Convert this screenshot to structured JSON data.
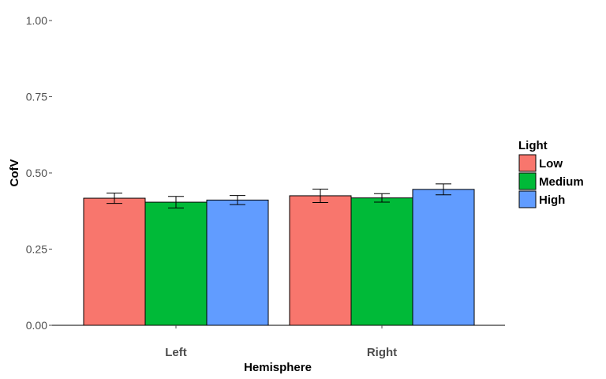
{
  "chart_data": {
    "type": "bar",
    "title": "",
    "xlabel": "Hemisphere",
    "ylabel": "CofV",
    "categories": [
      "Left",
      "Right"
    ],
    "ylim": [
      0,
      1
    ],
    "yticks": [
      "0.00",
      "0.25",
      "0.50",
      "0.75",
      "1.00"
    ],
    "ytick_values": [
      0,
      0.25,
      0.5,
      0.75,
      1.0
    ],
    "grid": false,
    "legend": {
      "title": "Light",
      "placement": "right"
    },
    "series": [
      {
        "name": "Low",
        "color": "#F8766D",
        "values": [
          0.417,
          0.425
        ],
        "errors": [
          0.017,
          0.022
        ]
      },
      {
        "name": "Medium",
        "color": "#00BA38",
        "values": [
          0.404,
          0.418
        ],
        "errors": [
          0.019,
          0.014
        ]
      },
      {
        "name": "High",
        "color": "#619CFF",
        "values": [
          0.411,
          0.446
        ],
        "errors": [
          0.015,
          0.018
        ]
      }
    ]
  }
}
